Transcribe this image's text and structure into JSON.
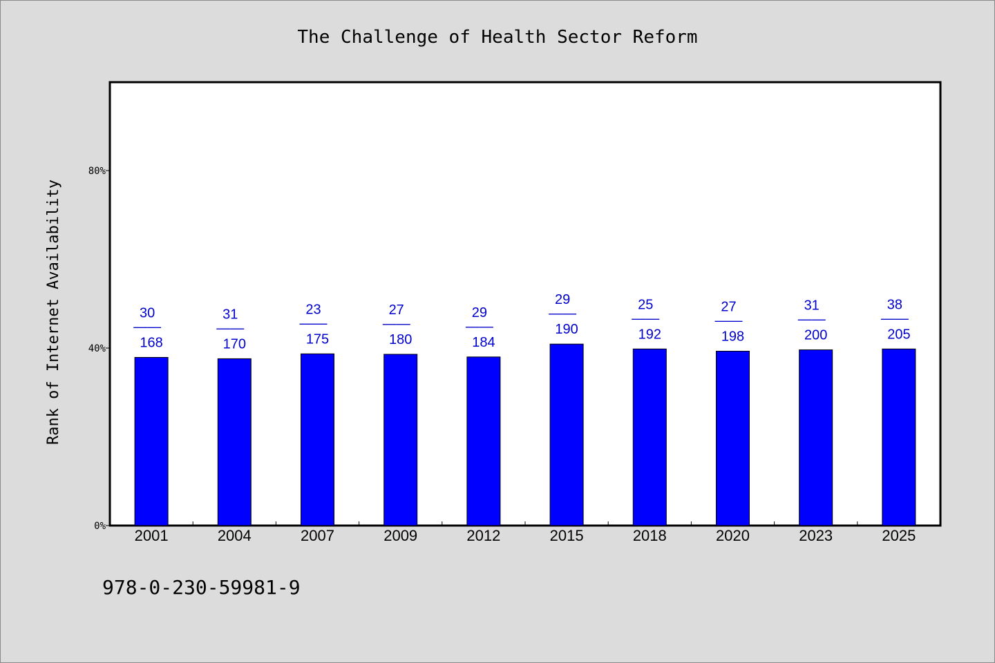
{
  "chart_data": {
    "type": "bar",
    "title": "The Challenge of Health Sector Reform",
    "xlabel": "",
    "ylabel": "Rank of Internet Availability",
    "ylim": [
      0,
      100
    ],
    "yticks": [
      {
        "value": 0,
        "label": "0%"
      },
      {
        "value": 40,
        "label": "40%"
      },
      {
        "value": 80,
        "label": "80%"
      }
    ],
    "categories": [
      "2001",
      "2004",
      "2007",
      "2009",
      "2012",
      "2015",
      "2018",
      "2020",
      "2023",
      "2025"
    ],
    "values": [
      37.9,
      37.6,
      38.7,
      38.6,
      38.0,
      40.9,
      39.8,
      39.3,
      39.6,
      39.8
    ],
    "labels": [
      {
        "top": "30",
        "bottom": "168"
      },
      {
        "top": "31",
        "bottom": "170"
      },
      {
        "top": "23",
        "bottom": "175"
      },
      {
        "top": "27",
        "bottom": "180"
      },
      {
        "top": "29",
        "bottom": "184"
      },
      {
        "top": "29",
        "bottom": "190"
      },
      {
        "top": "25",
        "bottom": "192"
      },
      {
        "top": "27",
        "bottom": "198"
      },
      {
        "top": "31",
        "bottom": "200"
      },
      {
        "top": "38",
        "bottom": "205"
      }
    ],
    "label_separator": "——",
    "bar_color": "#0000ff",
    "label_color": "#0000cc",
    "grid": false,
    "legend": "none"
  },
  "footer": {
    "isbn": "978-0-230-59981-9"
  }
}
